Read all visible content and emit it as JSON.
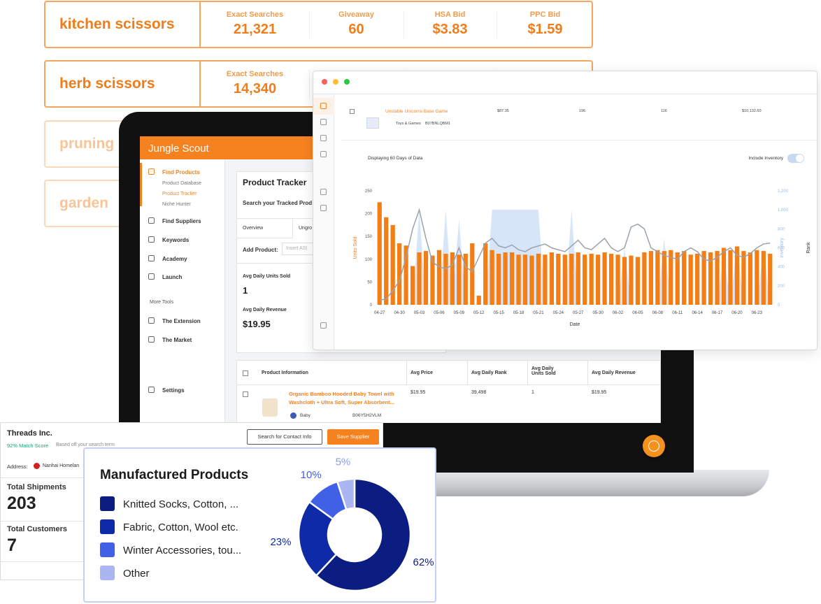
{
  "keyword_cards": [
    {
      "keyword": "kitchen scissors",
      "metrics": [
        {
          "label": "Exact Searches",
          "value": "21,321"
        },
        {
          "label": "Giveaway",
          "value": "60"
        },
        {
          "label": "HSA Bid",
          "value": "$3.83"
        },
        {
          "label": "PPC Bid",
          "value": "$1.59"
        }
      ]
    },
    {
      "keyword": "herb scissors",
      "metrics": [
        {
          "label": "Exact Searches",
          "value": "14,340"
        }
      ]
    },
    {
      "keyword": "pruning"
    },
    {
      "keyword": "garden"
    }
  ],
  "app": {
    "brand": "Jungle Scout",
    "nav": [
      {
        "label": "Find Products",
        "sub": [
          "Product Database",
          "Product Tracker",
          "Niche Hunter"
        ]
      },
      {
        "label": "Find Suppliers"
      },
      {
        "label": "Keywords"
      },
      {
        "label": "Academy"
      },
      {
        "label": "Launch"
      }
    ],
    "more_tools": "More Tools",
    "tools": [
      "The Extension",
      "The Market"
    ],
    "settings": "Settings",
    "tracker": {
      "title": "Product Tracker",
      "search": "Search your Tracked Prod",
      "tabs": [
        "Overview",
        "Ungro"
      ],
      "add_product": "Add Product:",
      "placeholder": "Insert ASI",
      "stats": [
        {
          "label": "Avg Daily Units Sold",
          "value": "1"
        },
        {
          "label": "Avg Daily Revenue",
          "value": "$19.95"
        }
      ]
    },
    "table": {
      "headers": [
        "Product Information",
        "Avg Price",
        "Avg Daily Rank",
        "Avg Daily Units Sold",
        "Avg Daily Revenue"
      ],
      "rows": [
        {
          "name": "Organic Bamboo Hooded Baby Towel with Washcloth + Ultra Soft, Super Absorbent...",
          "category": "Baby",
          "asin": "B06Y5H2VLM",
          "cells": [
            "$19.95",
            "39,498",
            "1",
            "$19.95"
          ]
        }
      ]
    }
  },
  "browser": {
    "row": {
      "name": "Unstable Unicorns Base Game",
      "cells": [
        "$87.35",
        "196",
        "116",
        "$10,132.60"
      ],
      "category": "Toys & Games",
      "asin": "B07BNLQBM1"
    },
    "caption": "Displaying 60 Days of Data",
    "toggle_label": "Include Inventory"
  },
  "supplier": {
    "name": "Threads Inc.",
    "match": "92% Match Score",
    "match_note": "Based off your search term",
    "address_label": "Address:",
    "address": "Nanhai Homelan",
    "contact_button": "Search for Contact Info",
    "save_button": "Save Supplier",
    "stats": [
      {
        "label": "Total Shipments",
        "value": "203"
      },
      {
        "label": "Total Customers",
        "value": "7"
      }
    ]
  },
  "chart_data": [
    {
      "type": "bar",
      "xlabel": "Date",
      "categories": [
        "04-27",
        null,
        null,
        "04-30",
        null,
        null,
        "05-03",
        null,
        null,
        "05-06",
        null,
        null,
        "05-09",
        null,
        null,
        "05-12",
        null,
        null,
        "05-15",
        null,
        null,
        "05-18",
        null,
        null,
        "05-21",
        null,
        null,
        "05-24",
        null,
        null,
        "05-27",
        null,
        null,
        "05-30",
        null,
        null,
        "06-02",
        null,
        null,
        "06-05",
        null,
        null,
        "06-08",
        null,
        null,
        "06-11",
        null,
        null,
        "06-14",
        null,
        null,
        "06-17",
        null,
        null,
        "06-20",
        null,
        null,
        "06-23",
        null,
        null
      ],
      "ylim": [
        0,
        250
      ],
      "yticks": [
        0,
        50,
        100,
        150,
        200,
        250
      ],
      "y2lim": [
        0,
        1200
      ],
      "y2ticks": [
        0,
        200,
        400,
        600,
        800,
        {
          "value": 1000,
          "label": "1,000"
        },
        {
          "value": 1200,
          "label": "1,200"
        }
      ],
      "y3label": "Rank",
      "grid": false,
      "series": [
        {
          "name": "Inventory",
          "type": "area",
          "axis": "y2",
          "color": "#cfe0f7",
          "values": [
            0,
            0,
            0,
            0,
            0,
            0,
            1000,
            0,
            0,
            0,
            1000,
            0,
            900,
            0,
            0,
            0,
            0,
            1000,
            1000,
            1000,
            1000,
            1000,
            1000,
            1000,
            1000,
            0,
            0,
            0,
            0,
            1000,
            0,
            0,
            0,
            0,
            0,
            0,
            0,
            600,
            0,
            0,
            0,
            0,
            0,
            700,
            0,
            0,
            0,
            0,
            0,
            0,
            0,
            0,
            560,
            0,
            650,
            0,
            0,
            0,
            600,
            0
          ]
        },
        {
          "name": "Units Sold",
          "type": "bar",
          "color": "#f47e16",
          "values": [
            225,
            192,
            175,
            135,
            130,
            85,
            115,
            118,
            108,
            120,
            112,
            115,
            110,
            112,
            135,
            20,
            135,
            120,
            112,
            115,
            115,
            110,
            110,
            108,
            112,
            110,
            115,
            112,
            110,
            112,
            115,
            110,
            112,
            110,
            115,
            112,
            110,
            105,
            108,
            105,
            115,
            118,
            120,
            118,
            120,
            115,
            118,
            110,
            112,
            118,
            115,
            118,
            125,
            120,
            128,
            118,
            115,
            120,
            118,
            112
          ]
        },
        {
          "name": "Rank",
          "type": "line",
          "axis": "y2",
          "color": "#9aa3ad",
          "values": [
            50,
            60,
            150,
            250,
            500,
            800,
            1000,
            700,
            450,
            400,
            380,
            420,
            600,
            400,
            350,
            500,
            650,
            700,
            620,
            600,
            630,
            580,
            560,
            600,
            620,
            640,
            600,
            580,
            560,
            620,
            680,
            600,
            580,
            640,
            700,
            600,
            560,
            600,
            820,
            850,
            800,
            600,
            560,
            520,
            500,
            480,
            560,
            600,
            560,
            480,
            460,
            500,
            560,
            600,
            520,
            500,
            540,
            600,
            640,
            650
          ]
        }
      ]
    },
    {
      "type": "pie",
      "donut": true,
      "title": "Manufactured Products",
      "categories": [
        "Knitted Socks, Cotton, ...",
        "Fabric, Cotton, Wool etc.",
        "Winter Accessories, tou...",
        "Other"
      ],
      "values": [
        62,
        23,
        10,
        5
      ],
      "value_labels": [
        "62%",
        "23%",
        "10%",
        "5%"
      ],
      "colors": [
        "#0b1d80",
        "#0e2aa6",
        "#4060e6",
        "#a9b6f2"
      ]
    }
  ]
}
